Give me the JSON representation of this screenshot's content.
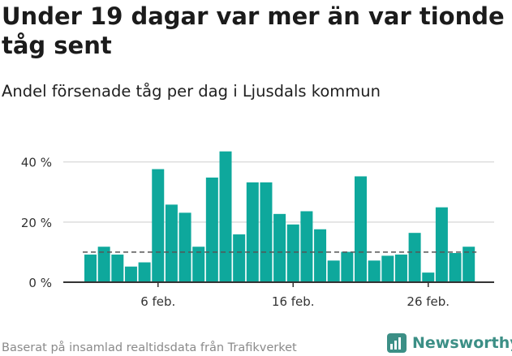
{
  "headline": "Under 19 dagar var mer än var tionde tåg sent",
  "subtitle": "Andel försenade tåg per dag i Ljusdals kommun",
  "footer": "Baserat på insamlad realtidsdata från Trafikverket",
  "brand": {
    "name": "Newsworthy",
    "icon": "newsworthy-logo-icon",
    "color": "#3c8f86"
  },
  "colors": {
    "bar": "#0ea89c",
    "reference_line": "#555555",
    "grid": "#dddddd",
    "axis": "#333333"
  },
  "chart_data": {
    "type": "bar",
    "x": [
      "2024-02-01",
      "2024-02-02",
      "2024-02-03",
      "2024-02-04",
      "2024-02-05",
      "2024-02-06",
      "2024-02-07",
      "2024-02-08",
      "2024-02-09",
      "2024-02-10",
      "2024-02-11",
      "2024-02-12",
      "2024-02-13",
      "2024-02-14",
      "2024-02-15",
      "2024-02-16",
      "2024-02-17",
      "2024-02-18",
      "2024-02-19",
      "2024-02-20",
      "2024-02-21",
      "2024-02-22",
      "2024-02-23",
      "2024-02-24",
      "2024-02-25",
      "2024-02-26",
      "2024-02-27",
      "2024-02-28",
      "2024-02-29"
    ],
    "values": [
      9.2,
      11.8,
      9.2,
      5.2,
      6.6,
      37.6,
      25.8,
      23.1,
      11.8,
      34.8,
      43.5,
      15.9,
      33.2,
      33.2,
      22.7,
      19.2,
      23.6,
      17.6,
      7.2,
      10.1,
      35.2,
      7.2,
      8.8,
      9.2,
      16.4,
      3.2,
      24.9,
      9.7,
      11.8
    ],
    "reference_line": 10,
    "ylim": [
      0,
      48
    ],
    "y_ticks": [
      0,
      20,
      40
    ],
    "y_tick_labels": [
      "0 %",
      "20 %",
      "40 %"
    ],
    "x_tick_labels": [
      {
        "index": 5,
        "label": "6 feb."
      },
      {
        "index": 15,
        "label": "16 feb."
      },
      {
        "index": 25,
        "label": "26 feb."
      }
    ],
    "grid": true,
    "xlabel": "",
    "ylabel": ""
  }
}
